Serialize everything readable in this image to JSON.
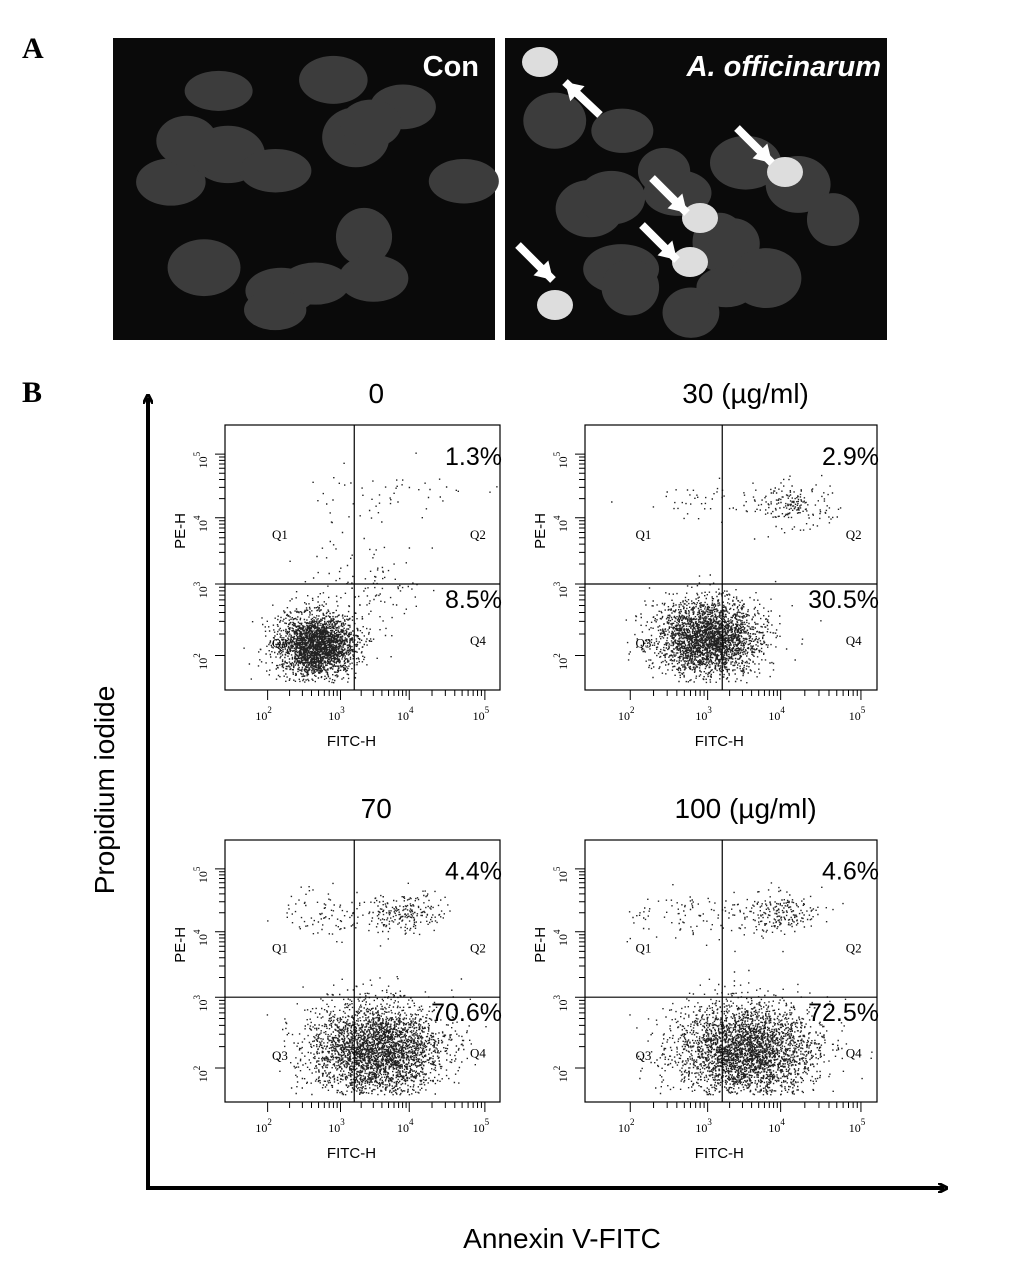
{
  "panel_a": {
    "label": "A",
    "images": [
      {
        "label": "Con"
      },
      {
        "label": "A. officinarum"
      }
    ]
  },
  "panel_b": {
    "label": "B",
    "y_axis_label": "Propidium iodide",
    "x_axis_label": "Annexin V-FITC",
    "plot_x_label": "FITC-H",
    "plot_y_label": "PE-H",
    "quadrants": [
      "Q1",
      "Q2",
      "Q3",
      "Q4"
    ],
    "tick_labels": [
      {
        "base": "10",
        "exp": "2"
      },
      {
        "base": "10",
        "exp": "3"
      },
      {
        "base": "10",
        "exp": "4"
      },
      {
        "base": "10",
        "exp": "5"
      }
    ],
    "plots": [
      {
        "title": "0",
        "upper_right": "1.3%",
        "lower_right": "8.5%"
      },
      {
        "title": "30 (µg/ml)",
        "upper_right": "2.9%",
        "lower_right": "30.5%"
      },
      {
        "title": "70",
        "upper_right": "4.4%",
        "lower_right": "70.6%"
      },
      {
        "title": "100 (µg/ml)",
        "upper_right": "4.6%",
        "lower_right": "72.5%"
      }
    ]
  }
}
